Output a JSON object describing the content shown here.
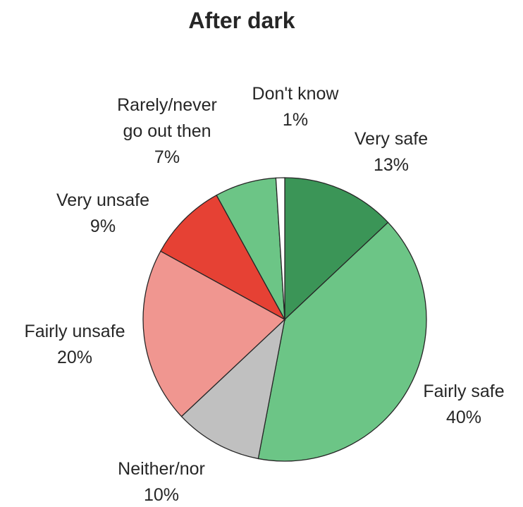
{
  "chart_data": {
    "type": "pie",
    "title": "After dark",
    "start_angle_deg": 0,
    "direction": "clockwise",
    "slices": [
      {
        "label_lines": [
          "Very safe"
        ],
        "value": 13,
        "value_label": "13%",
        "color": "#3b9557"
      },
      {
        "label_lines": [
          "Fairly safe"
        ],
        "value": 40,
        "value_label": "40%",
        "color": "#6cc586"
      },
      {
        "label_lines": [
          "Neither/nor"
        ],
        "value": 10,
        "value_label": "10%",
        "color": "#c0c0c0"
      },
      {
        "label_lines": [
          "Fairly unsafe"
        ],
        "value": 20,
        "value_label": "20%",
        "color": "#f09690"
      },
      {
        "label_lines": [
          "Very unsafe"
        ],
        "value": 9,
        "value_label": "9%",
        "color": "#e64134"
      },
      {
        "label_lines": [
          "Rarely/never",
          "go out then"
        ],
        "value": 7,
        "value_label": "7%",
        "color": "#6cc586"
      },
      {
        "label_lines": [
          "Don't know"
        ],
        "value": 1,
        "value_label": "1%",
        "color": "#ffffff"
      }
    ]
  }
}
